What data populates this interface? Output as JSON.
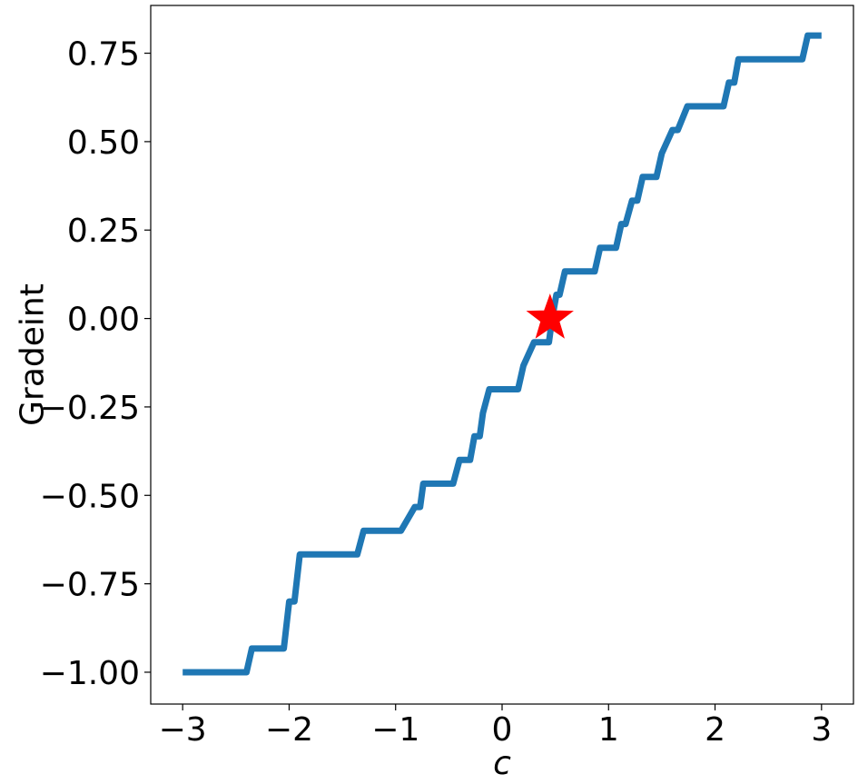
{
  "chart_data": {
    "type": "line",
    "xlabel": "c",
    "ylabel": "Gradeint",
    "xlim": [
      -3.3,
      3.3
    ],
    "ylim": [
      -1.09,
      0.885
    ],
    "xticks": [
      -3,
      -2,
      -1,
      0,
      1,
      2,
      3
    ],
    "xtick_labels": [
      "−3",
      "−2",
      "−1",
      "0",
      "1",
      "2",
      "3"
    ],
    "yticks": [
      -1.0,
      -0.75,
      -0.5,
      -0.25,
      0.0,
      0.25,
      0.5,
      0.75
    ],
    "ytick_labels": [
      "−1.00",
      "−0.75",
      "−0.50",
      "−0.25",
      "0.00",
      "0.25",
      "0.50",
      "0.75"
    ],
    "grid": false,
    "series": [
      {
        "color": "#1f77b4",
        "x": [
          -3.0,
          -2.4,
          -2.35,
          -2.05,
          -2.0,
          -1.95,
          -1.9,
          -1.87,
          -1.36,
          -1.3,
          -0.98,
          -0.95,
          -0.82,
          -0.77,
          -0.74,
          -0.46,
          -0.4,
          -0.3,
          -0.26,
          -0.21,
          -0.18,
          -0.12,
          -0.05,
          0.15,
          0.2,
          0.3,
          0.38,
          0.44,
          0.47,
          0.51,
          0.54,
          0.59,
          0.62,
          0.87,
          0.92,
          0.96,
          1.07,
          1.12,
          1.16,
          1.22,
          1.27,
          1.32,
          1.37,
          1.45,
          1.5,
          1.6,
          1.65,
          1.74,
          1.8,
          2.08,
          2.13,
          2.18,
          2.22,
          2.26,
          2.31,
          2.82,
          2.87,
          3.0
        ],
        "y": [
          -1.0,
          -1.0,
          -0.933,
          -0.933,
          -0.8,
          -0.8,
          -0.667,
          -0.667,
          -0.667,
          -0.6,
          -0.6,
          -0.6,
          -0.533,
          -0.533,
          -0.467,
          -0.467,
          -0.4,
          -0.4,
          -0.333,
          -0.333,
          -0.267,
          -0.2,
          -0.2,
          -0.2,
          -0.133,
          -0.067,
          -0.067,
          -0.067,
          0.0,
          0.067,
          0.067,
          0.133,
          0.133,
          0.133,
          0.2,
          0.2,
          0.2,
          0.267,
          0.267,
          0.333,
          0.333,
          0.4,
          0.4,
          0.4,
          0.467,
          0.533,
          0.533,
          0.6,
          0.6,
          0.6,
          0.667,
          0.667,
          0.733,
          0.733,
          0.733,
          0.733,
          0.8,
          0.8
        ]
      }
    ],
    "markers": [
      {
        "shape": "star",
        "color": "#ff0000",
        "x": 0.45,
        "y": 0.0
      }
    ]
  }
}
